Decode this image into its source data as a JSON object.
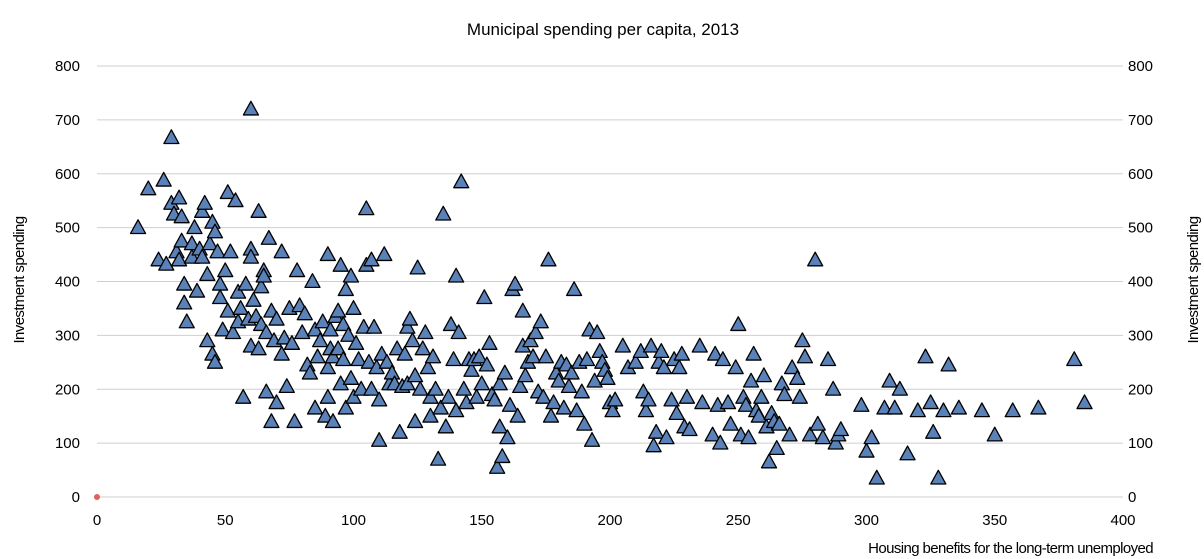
{
  "chart_data": {
    "type": "scatter",
    "title": "Municipal spending per capita, 2013",
    "xlabel": "Housing benefits for the long-term unemployed",
    "ylabel": "Investment spending",
    "ylabel_right": "Investment spending",
    "xlim": [
      0,
      400
    ],
    "ylim": [
      0,
      800
    ],
    "x_ticks": [
      "0",
      "50",
      "100",
      "150",
      "200",
      "250",
      "300",
      "350",
      "400"
    ],
    "y_ticks": [
      "0",
      "100",
      "200",
      "300",
      "400",
      "500",
      "600",
      "700",
      "800"
    ],
    "grid": "horizontal",
    "legend": "none",
    "colors": {
      "marker_fill": "#5b82b8",
      "marker_edge": "#000000",
      "grid": "#cfcfcf",
      "origin_marker": "#e06060"
    },
    "series": [
      {
        "marker": "triangle",
        "points": [
          [
            16,
            500
          ],
          [
            20,
            572
          ],
          [
            24,
            440
          ],
          [
            26,
            588
          ],
          [
            27,
            432
          ],
          [
            29,
            667
          ],
          [
            29,
            545
          ],
          [
            30,
            525
          ],
          [
            31,
            455
          ],
          [
            32,
            555
          ],
          [
            32,
            440
          ],
          [
            33,
            520
          ],
          [
            33,
            475
          ],
          [
            34,
            395
          ],
          [
            34,
            360
          ],
          [
            35,
            325
          ],
          [
            37,
            470
          ],
          [
            37,
            445
          ],
          [
            38,
            500
          ],
          [
            39,
            382
          ],
          [
            40,
            460
          ],
          [
            41,
            530
          ],
          [
            41,
            445
          ],
          [
            42,
            545
          ],
          [
            43,
            413
          ],
          [
            43,
            290
          ],
          [
            44,
            470
          ],
          [
            45,
            510
          ],
          [
            45,
            265
          ],
          [
            46,
            250
          ],
          [
            46,
            492
          ],
          [
            47,
            455
          ],
          [
            48,
            395
          ],
          [
            48,
            370
          ],
          [
            49,
            310
          ],
          [
            50,
            420
          ],
          [
            51,
            565
          ],
          [
            51,
            345
          ],
          [
            52,
            455
          ],
          [
            53,
            305
          ],
          [
            54,
            550
          ],
          [
            55,
            380
          ],
          [
            55,
            325
          ],
          [
            56,
            350
          ],
          [
            57,
            185
          ],
          [
            58,
            395
          ],
          [
            59,
            330
          ],
          [
            60,
            720
          ],
          [
            60,
            460
          ],
          [
            60,
            445
          ],
          [
            60,
            280
          ],
          [
            61,
            365
          ],
          [
            62,
            335
          ],
          [
            63,
            275
          ],
          [
            63,
            530
          ],
          [
            64,
            390
          ],
          [
            64,
            320
          ],
          [
            65,
            420
          ],
          [
            65,
            410
          ],
          [
            66,
            195
          ],
          [
            66,
            305
          ],
          [
            67,
            480
          ],
          [
            68,
            140
          ],
          [
            68,
            345
          ],
          [
            69,
            290
          ],
          [
            70,
            330
          ],
          [
            70,
            175
          ],
          [
            72,
            455
          ],
          [
            72,
            265
          ],
          [
            73,
            295
          ],
          [
            74,
            205
          ],
          [
            75,
            350
          ],
          [
            76,
            285
          ],
          [
            77,
            140
          ],
          [
            78,
            420
          ],
          [
            79,
            355
          ],
          [
            80,
            305
          ],
          [
            81,
            340
          ],
          [
            82,
            245
          ],
          [
            83,
            230
          ],
          [
            84,
            400
          ],
          [
            85,
            310
          ],
          [
            85,
            165
          ],
          [
            86,
            260
          ],
          [
            87,
            290
          ],
          [
            88,
            325
          ],
          [
            89,
            150
          ],
          [
            90,
            450
          ],
          [
            90,
            240
          ],
          [
            90,
            185
          ],
          [
            91,
            310
          ],
          [
            91,
            275
          ],
          [
            92,
            260
          ],
          [
            92,
            140
          ],
          [
            93,
            335
          ],
          [
            94,
            345
          ],
          [
            94,
            275
          ],
          [
            95,
            430
          ],
          [
            95,
            210
          ],
          [
            96,
            320
          ],
          [
            96,
            255
          ],
          [
            97,
            385
          ],
          [
            97,
            165
          ],
          [
            98,
            300
          ],
          [
            99,
            410
          ],
          [
            99,
            220
          ],
          [
            100,
            350
          ],
          [
            100,
            185
          ],
          [
            101,
            285
          ],
          [
            102,
            255
          ],
          [
            103,
            200
          ],
          [
            104,
            315
          ],
          [
            105,
            430
          ],
          [
            105,
            535
          ],
          [
            106,
            250
          ],
          [
            107,
            440
          ],
          [
            107,
            200
          ],
          [
            108,
            315
          ],
          [
            109,
            240
          ],
          [
            110,
            105
          ],
          [
            110,
            180
          ],
          [
            111,
            265
          ],
          [
            112,
            450
          ],
          [
            113,
            250
          ],
          [
            114,
            210
          ],
          [
            115,
            230
          ],
          [
            116,
            210
          ],
          [
            117,
            275
          ],
          [
            118,
            120
          ],
          [
            119,
            205
          ],
          [
            120,
            265
          ],
          [
            121,
            315
          ],
          [
            121,
            210
          ],
          [
            122,
            330
          ],
          [
            123,
            290
          ],
          [
            124,
            225
          ],
          [
            124,
            140
          ],
          [
            125,
            425
          ],
          [
            126,
            200
          ],
          [
            127,
            275
          ],
          [
            128,
            305
          ],
          [
            129,
            240
          ],
          [
            130,
            185
          ],
          [
            130,
            150
          ],
          [
            131,
            260
          ],
          [
            132,
            200
          ],
          [
            133,
            70
          ],
          [
            134,
            165
          ],
          [
            135,
            525
          ],
          [
            136,
            130
          ],
          [
            137,
            185
          ],
          [
            138,
            320
          ],
          [
            139,
            255
          ],
          [
            140,
            160
          ],
          [
            140,
            410
          ],
          [
            141,
            305
          ],
          [
            142,
            585
          ],
          [
            143,
            200
          ],
          [
            144,
            175
          ],
          [
            145,
            255
          ],
          [
            146,
            235
          ],
          [
            147,
            255
          ],
          [
            148,
            185
          ],
          [
            149,
            260
          ],
          [
            150,
            210
          ],
          [
            151,
            370
          ],
          [
            152,
            245
          ],
          [
            153,
            285
          ],
          [
            154,
            190
          ],
          [
            155,
            180
          ],
          [
            156,
            55
          ],
          [
            157,
            210
          ],
          [
            157,
            130
          ],
          [
            158,
            75
          ],
          [
            159,
            230
          ],
          [
            160,
            110
          ],
          [
            161,
            170
          ],
          [
            162,
            385
          ],
          [
            163,
            395
          ],
          [
            164,
            150
          ],
          [
            165,
            205
          ],
          [
            166,
            345
          ],
          [
            166,
            280
          ],
          [
            167,
            225
          ],
          [
            168,
            250
          ],
          [
            169,
            290
          ],
          [
            170,
            260
          ],
          [
            171,
            305
          ],
          [
            172,
            195
          ],
          [
            173,
            325
          ],
          [
            174,
            185
          ],
          [
            175,
            260
          ],
          [
            176,
            440
          ],
          [
            177,
            150
          ],
          [
            178,
            175
          ],
          [
            179,
            230
          ],
          [
            180,
            215
          ],
          [
            181,
            250
          ],
          [
            182,
            165
          ],
          [
            183,
            245
          ],
          [
            184,
            205
          ],
          [
            185,
            230
          ],
          [
            186,
            385
          ],
          [
            187,
            160
          ],
          [
            188,
            250
          ],
          [
            189,
            195
          ],
          [
            190,
            135
          ],
          [
            191,
            255
          ],
          [
            192,
            310
          ],
          [
            193,
            105
          ],
          [
            194,
            215
          ],
          [
            195,
            305
          ],
          [
            196,
            270
          ],
          [
            197,
            250
          ],
          [
            198,
            235
          ],
          [
            199,
            220
          ],
          [
            200,
            175
          ],
          [
            201,
            160
          ],
          [
            202,
            180
          ],
          [
            205,
            280
          ],
          [
            207,
            240
          ],
          [
            210,
            250
          ],
          [
            212,
            270
          ],
          [
            213,
            195
          ],
          [
            214,
            160
          ],
          [
            215,
            180
          ],
          [
            216,
            280
          ],
          [
            217,
            95
          ],
          [
            218,
            120
          ],
          [
            219,
            250
          ],
          [
            220,
            270
          ],
          [
            221,
            240
          ],
          [
            222,
            110
          ],
          [
            224,
            180
          ],
          [
            225,
            255
          ],
          [
            226,
            155
          ],
          [
            227,
            240
          ],
          [
            228,
            265
          ],
          [
            229,
            130
          ],
          [
            230,
            185
          ],
          [
            231,
            125
          ],
          [
            235,
            280
          ],
          [
            236,
            175
          ],
          [
            240,
            115
          ],
          [
            241,
            265
          ],
          [
            242,
            170
          ],
          [
            243,
            100
          ],
          [
            244,
            255
          ],
          [
            246,
            175
          ],
          [
            247,
            135
          ],
          [
            249,
            240
          ],
          [
            250,
            320
          ],
          [
            251,
            115
          ],
          [
            252,
            185
          ],
          [
            253,
            170
          ],
          [
            254,
            110
          ],
          [
            255,
            215
          ],
          [
            256,
            265
          ],
          [
            257,
            160
          ],
          [
            258,
            150
          ],
          [
            259,
            185
          ],
          [
            260,
            225
          ],
          [
            261,
            130
          ],
          [
            262,
            65
          ],
          [
            263,
            155
          ],
          [
            264,
            140
          ],
          [
            265,
            90
          ],
          [
            266,
            135
          ],
          [
            267,
            210
          ],
          [
            268,
            190
          ],
          [
            270,
            115
          ],
          [
            271,
            240
          ],
          [
            273,
            220
          ],
          [
            274,
            185
          ],
          [
            275,
            290
          ],
          [
            276,
            260
          ],
          [
            278,
            115
          ],
          [
            280,
            440
          ],
          [
            281,
            135
          ],
          [
            283,
            110
          ],
          [
            285,
            255
          ],
          [
            287,
            200
          ],
          [
            288,
            100
          ],
          [
            289,
            115
          ],
          [
            290,
            125
          ],
          [
            298,
            170
          ],
          [
            300,
            85
          ],
          [
            302,
            110
          ],
          [
            304,
            35
          ],
          [
            307,
            165
          ],
          [
            309,
            215
          ],
          [
            311,
            165
          ],
          [
            313,
            200
          ],
          [
            316,
            80
          ],
          [
            320,
            160
          ],
          [
            323,
            260
          ],
          [
            325,
            175
          ],
          [
            326,
            120
          ],
          [
            328,
            35
          ],
          [
            330,
            160
          ],
          [
            332,
            245
          ],
          [
            336,
            165
          ],
          [
            345,
            160
          ],
          [
            350,
            115
          ],
          [
            357,
            160
          ],
          [
            367,
            165
          ],
          [
            381,
            255
          ],
          [
            385,
            175
          ]
        ]
      }
    ]
  }
}
